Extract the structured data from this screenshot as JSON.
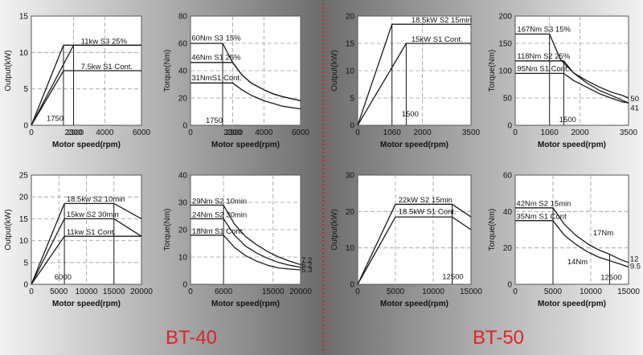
{
  "page": {
    "labels": {
      "left": "BT-40",
      "right": "BT-50"
    },
    "colors": {
      "label": "#d8262a",
      "divider": "#c8252b",
      "curve": "#1a1a1a",
      "grid": "#9a9a9a",
      "panel": "#ffffff"
    }
  },
  "chart_data": [
    {
      "id": "bt40-output-top",
      "type": "line",
      "xlabel": "Motor speed(rpm)",
      "ylabel": "Output(kW)",
      "xlim": [
        0,
        6000
      ],
      "ylim": [
        0,
        15
      ],
      "xticks": [
        0,
        2300,
        4000,
        6000
      ],
      "yticks": [
        0,
        5,
        10,
        15
      ],
      "series": [
        {
          "x": [
            0,
            1750,
            6000
          ],
          "y": [
            0,
            7.5,
            7.5
          ]
        },
        {
          "x": [
            0,
            1750,
            6000
          ],
          "y": [
            0,
            11,
            11
          ]
        },
        {
          "x": [
            0,
            2300,
            6000
          ],
          "y": [
            0,
            11,
            11
          ]
        }
      ],
      "vlines": [
        {
          "x": 1750,
          "y": [
            0,
            11
          ]
        },
        {
          "x": 2300,
          "y": [
            0,
            11
          ]
        }
      ],
      "annotations": [
        {
          "text": "11kw S3 25%",
          "x": 2700,
          "y": 11.2
        },
        {
          "text": "7.5kw S1 Cont.",
          "x": 2700,
          "y": 7.7
        },
        {
          "text": "1750",
          "x": 830,
          "y": 0.6
        },
        {
          "text": "2300",
          "x": 1930,
          "y": -1.3
        }
      ]
    },
    {
      "id": "bt40-torque-top",
      "type": "line",
      "xlabel": "Motor speed(rpm)",
      "ylabel": "Torque(Nm)",
      "xlim": [
        0,
        6000
      ],
      "ylim": [
        0,
        80
      ],
      "xticks": [
        0,
        2300,
        4000,
        6000
      ],
      "yticks": [
        0,
        20,
        40,
        60,
        80
      ],
      "series": [
        {
          "x": [
            0,
            1750,
            2300,
            2800,
            3300,
            4000,
            4500,
            5000,
            6000
          ],
          "y": [
            60,
            60,
            46,
            37,
            31,
            26,
            23,
            21,
            18
          ]
        },
        {
          "x": [
            0,
            1750,
            2300,
            2800,
            3300,
            4000,
            4500,
            5000,
            6000
          ],
          "y": [
            46,
            46,
            46,
            37,
            31,
            26,
            23,
            21,
            18
          ]
        },
        {
          "x": [
            0,
            1750,
            2300,
            2800,
            3300,
            4000,
            4500,
            5000,
            6000
          ],
          "y": [
            31,
            31,
            31,
            26,
            22,
            18,
            16,
            14,
            12
          ]
        }
      ],
      "vlines": [
        {
          "x": 1750,
          "y": [
            0,
            60
          ]
        }
      ],
      "annotations": [
        {
          "text": "60Nm S3 15%",
          "x": 60,
          "y": 62
        },
        {
          "text": "46Nm S1 25%",
          "x": 60,
          "y": 48
        },
        {
          "text": "31NmS1 Cont.",
          "x": 60,
          "y": 33
        },
        {
          "text": "1750",
          "x": 830,
          "y": 1.8
        },
        {
          "text": "2300",
          "x": 1930,
          "y": -7
        }
      ]
    },
    {
      "id": "bt50-output-top",
      "type": "line",
      "xlabel": "Motor speed(rpm)",
      "ylabel": "Output(kW)",
      "xlim": [
        0,
        3500
      ],
      "ylim": [
        0,
        20
      ],
      "xticks": [
        0,
        1060,
        2000,
        3500
      ],
      "yticks": [
        0,
        5,
        10,
        15,
        20
      ],
      "series": [
        {
          "x": [
            0,
            1060,
            3500
          ],
          "y": [
            0,
            18.5,
            18.5
          ]
        },
        {
          "x": [
            0,
            1500,
            3500
          ],
          "y": [
            0,
            15,
            15
          ]
        }
      ],
      "vlines": [
        {
          "x": 1060,
          "y": [
            0,
            18.5
          ]
        },
        {
          "x": 1500,
          "y": [
            0,
            15
          ]
        }
      ],
      "annotations": [
        {
          "text": "18.5kW S2 15min",
          "x": 1660,
          "y": 18.8
        },
        {
          "text": "15kW S1 Cont.",
          "x": 1660,
          "y": 15.3
        },
        {
          "text": "1500",
          "x": 1360,
          "y": 1.6
        }
      ]
    },
    {
      "id": "bt50-torque-top",
      "type": "line",
      "xlabel": "Motor speed(rpm)",
      "ylabel": "Torque(Nm)",
      "xlim": [
        0,
        3500
      ],
      "ylim": [
        0,
        200
      ],
      "xticks": [
        0,
        1060,
        2000,
        3500
      ],
      "yticks": [
        0,
        50,
        100,
        150,
        200
      ],
      "series": [
        {
          "x": [
            0,
            1060,
            1400,
            1800,
            2200,
            2600,
            3000,
            3300,
            3500
          ],
          "y": [
            167,
            167,
            120,
            96,
            82,
            70,
            60,
            55,
            50
          ]
        },
        {
          "x": [
            0,
            1500,
            1800,
            2200,
            2600,
            3000,
            3300,
            3500
          ],
          "y": [
            118,
            118,
            96,
            78,
            64,
            54,
            46,
            41
          ]
        },
        {
          "x": [
            0,
            1500,
            1800,
            2200,
            2600,
            3000,
            3300,
            3500
          ],
          "y": [
            95,
            95,
            82,
            70,
            58,
            49,
            43,
            41
          ]
        }
      ],
      "vlines": [
        {
          "x": 1060,
          "y": [
            0,
            167
          ]
        },
        {
          "x": 1500,
          "y": [
            0,
            118
          ]
        }
      ],
      "annotations": [
        {
          "text": "167Nm S3 15%",
          "x": 60,
          "y": 171
        },
        {
          "text": "118Nm S2 25%",
          "x": 60,
          "y": 122
        },
        {
          "text": "95Nm S1 Cont.",
          "x": 60,
          "y": 99
        },
        {
          "text": "1500",
          "x": 1360,
          "y": 6
        },
        {
          "text": "50",
          "x": 3560,
          "y": 44
        },
        {
          "text": "41",
          "x": 3560,
          "y": 27
        }
      ]
    },
    {
      "id": "bt40-output-bottom",
      "type": "line",
      "xlabel": "Motor speed(rpm)",
      "ylabel": "Output(kW)",
      "xlim": [
        0,
        20000
      ],
      "ylim": [
        0,
        25
      ],
      "xticks": [
        0,
        5000,
        10000,
        15000,
        20000
      ],
      "yticks": [
        0,
        5,
        10,
        15,
        20,
        25
      ],
      "series": [
        {
          "x": [
            0,
            6000,
            15000,
            20000
          ],
          "y": [
            0,
            18.5,
            18.5,
            15
          ]
        },
        {
          "x": [
            0,
            6000,
            15000,
            20000
          ],
          "y": [
            0,
            15,
            15,
            11
          ]
        },
        {
          "x": [
            0,
            6000,
            15000,
            20000
          ],
          "y": [
            0,
            11,
            11,
            11
          ]
        }
      ],
      "vlines": [
        {
          "x": 6000,
          "y": [
            0,
            18.5
          ]
        },
        {
          "x": 15000,
          "y": [
            0,
            18.5
          ]
        }
      ],
      "annotations": [
        {
          "text": "18.5kw S2 10min",
          "x": 6400,
          "y": 18.9
        },
        {
          "text": "15kw S2 30min",
          "x": 6400,
          "y": 15.4
        },
        {
          "text": "11kw S1 Cont.",
          "x": 6400,
          "y": 11.4
        },
        {
          "text": "6000",
          "x": 4200,
          "y": 1.1
        }
      ]
    },
    {
      "id": "bt40-torque-bottom",
      "type": "line",
      "xlabel": "Motor speed(rpm)",
      "ylabel": "Torque(Nm)",
      "xlim": [
        0,
        20000
      ],
      "ylim": [
        0,
        40
      ],
      "xticks": [
        0,
        6000,
        15000,
        20000
      ],
      "yticks": [
        0,
        10,
        20,
        30,
        40
      ],
      "series": [
        {
          "x": [
            0,
            6000,
            8000,
            10000,
            12000,
            14000,
            16000,
            18000,
            20000
          ],
          "y": [
            29,
            29,
            22,
            17.5,
            14.5,
            12,
            10,
            8.5,
            7.2
          ]
        },
        {
          "x": [
            0,
            6000,
            8000,
            10000,
            12000,
            14000,
            16000,
            18000,
            20000
          ],
          "y": [
            24,
            24,
            18,
            14,
            11.5,
            9.5,
            8,
            7,
            6.2
          ]
        },
        {
          "x": [
            0,
            6000,
            8000,
            10000,
            12000,
            14000,
            16000,
            18000,
            20000
          ],
          "y": [
            18,
            18,
            13.5,
            10.5,
            8.5,
            7,
            6,
            5.6,
            5.3
          ]
        }
      ],
      "vlines": [
        {
          "x": 6000,
          "y": [
            0,
            29
          ]
        }
      ],
      "annotations": [
        {
          "text": "29Nm S2 10min",
          "x": 300,
          "y": 29.5
        },
        {
          "text": "24Nm S2 30min",
          "x": 300,
          "y": 24.5
        },
        {
          "text": "18Nm S1 Cont.",
          "x": 300,
          "y": 18.5
        },
        {
          "text": "7.2",
          "x": 20150,
          "y": 8
        },
        {
          "text": "6.2",
          "x": 20150,
          "y": 6.2
        },
        {
          "text": "5.3",
          "x": 20150,
          "y": 4.4
        }
      ]
    },
    {
      "id": "bt50-output-bottom",
      "type": "line",
      "xlabel": "Motor speed(rpm)",
      "ylabel": "Output(kW)",
      "xlim": [
        0,
        15000
      ],
      "ylim": [
        0,
        30
      ],
      "xticks": [
        0,
        5000,
        10000,
        15000
      ],
      "yticks": [
        0,
        10,
        20,
        30
      ],
      "series": [
        {
          "x": [
            0,
            5000,
            12500,
            15000
          ],
          "y": [
            0,
            22,
            22,
            18.5
          ]
        },
        {
          "x": [
            0,
            5000,
            12500,
            15000
          ],
          "y": [
            0,
            18.5,
            18.5,
            15
          ]
        }
      ],
      "vlines": [
        {
          "x": 12500,
          "y": [
            0,
            22
          ]
        }
      ],
      "annotations": [
        {
          "text": "22kW S2 15min",
          "x": 5400,
          "y": 22.5
        },
        {
          "text": "18.5kW S1 Cont.",
          "x": 5400,
          "y": 19.3
        },
        {
          "text": "12500",
          "x": 11200,
          "y": 1.4
        }
      ]
    },
    {
      "id": "bt50-torque-bottom",
      "type": "line",
      "xlabel": "Motor speed(rpm)",
      "ylabel": "Torque(Nm)",
      "xlim": [
        0,
        15000
      ],
      "ylim": [
        0,
        60
      ],
      "xticks": [
        0,
        5000,
        10000,
        15000
      ],
      "yticks": [
        0,
        20,
        40,
        60
      ],
      "series": [
        {
          "x": [
            0,
            5000,
            6500,
            8000,
            9500,
            11000,
            12500,
            14000,
            15000
          ],
          "y": [
            42,
            42,
            33,
            27,
            22.5,
            19,
            16.5,
            13.5,
            12
          ]
        },
        {
          "x": [
            0,
            5000,
            6500,
            8000,
            9500,
            11000,
            12500,
            14000,
            15000
          ],
          "y": [
            35,
            35,
            27,
            22,
            18,
            15,
            13,
            11,
            9.5
          ]
        }
      ],
      "vlines": [
        {
          "x": 5000,
          "y": [
            0,
            42
          ]
        },
        {
          "x": 12500,
          "y": [
            0,
            16.5
          ]
        }
      ],
      "annotations": [
        {
          "text": "42Nm S2 15min",
          "x": 150,
          "y": 43
        },
        {
          "text": "35Nm S1 Cont",
          "x": 150,
          "y": 36
        },
        {
          "text": "17Nm",
          "x": 10300,
          "y": 27
        },
        {
          "text": "14Nm",
          "x": 6900,
          "y": 11
        },
        {
          "text": "12",
          "x": 15200,
          "y": 12.5
        },
        {
          "text": "9.5",
          "x": 15200,
          "y": 8.5
        },
        {
          "text": "12500",
          "x": 11300,
          "y": 2.5
        }
      ]
    }
  ]
}
